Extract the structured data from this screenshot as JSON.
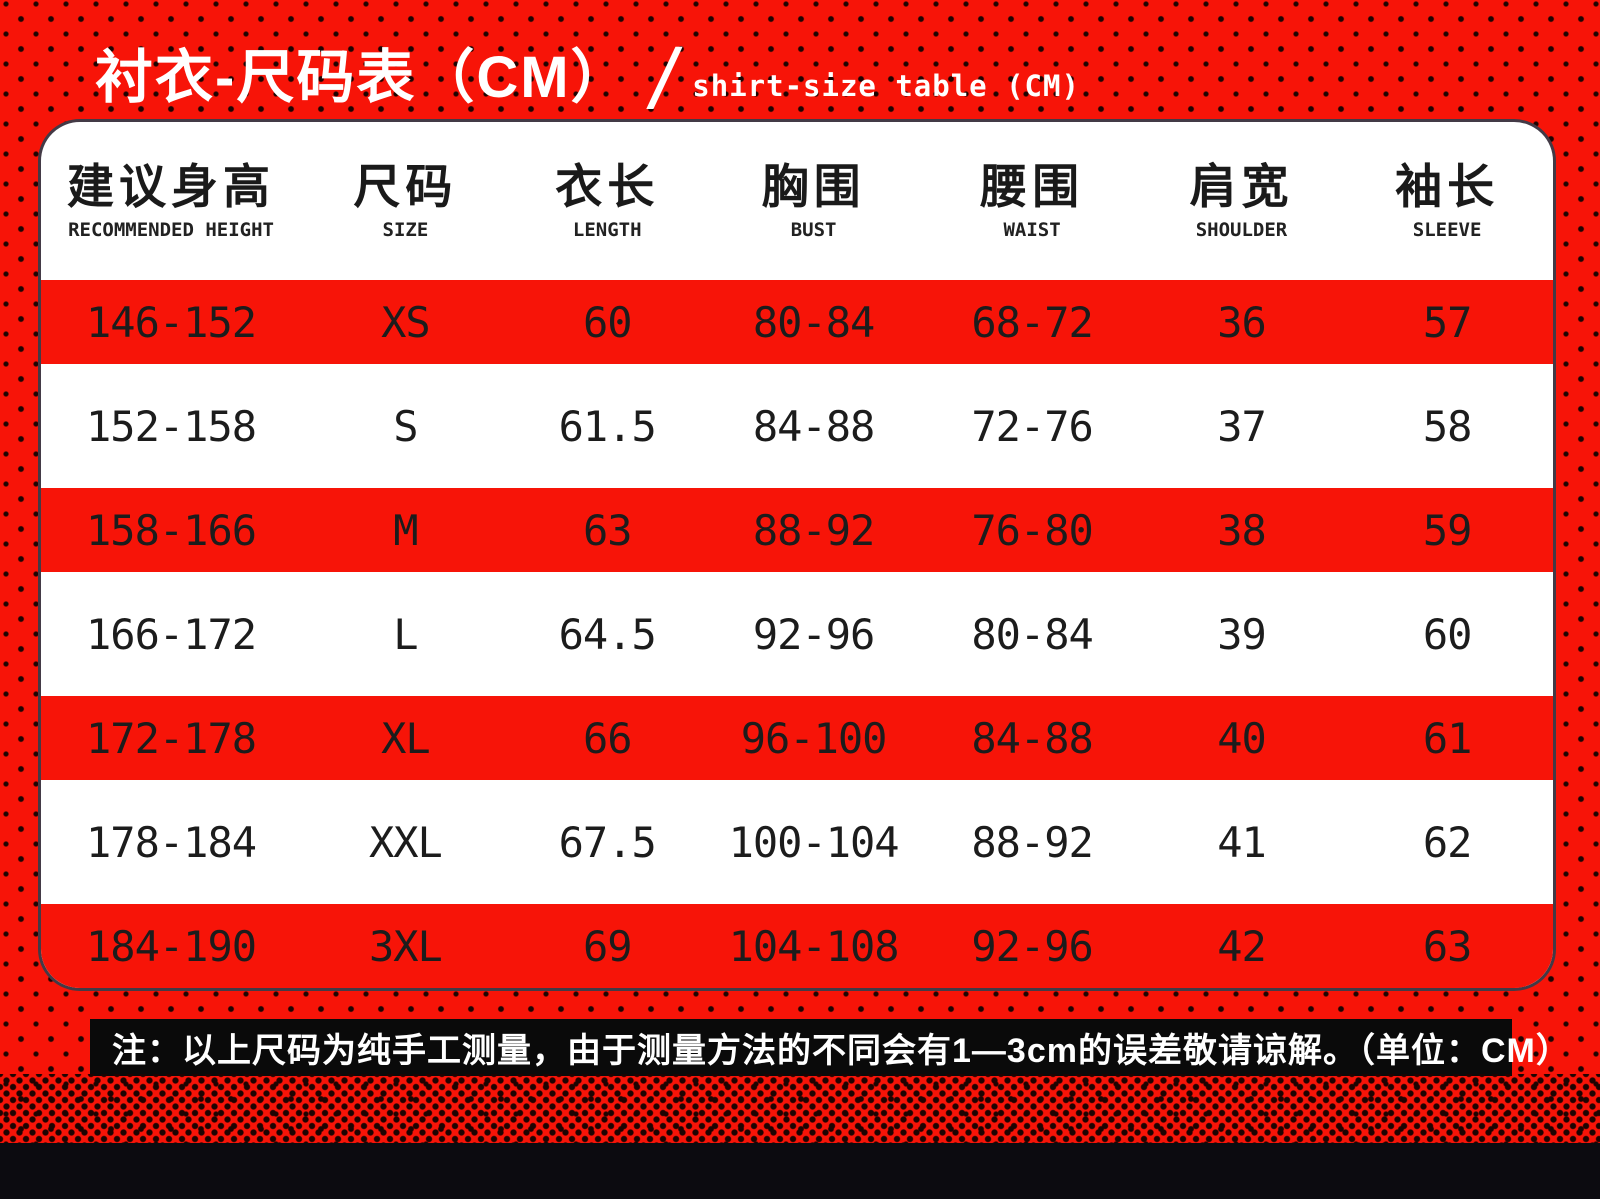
{
  "header": {
    "title_cn": "衬衣-尺码表（CM）",
    "slash": "/",
    "title_en": "shirt-size table (CM)"
  },
  "chart_data": {
    "type": "table",
    "title": "衬衣-尺码表（CM）/ shirt-size table (CM)",
    "units": "CM",
    "columns": [
      {
        "cn": "建议身高",
        "en": "RECOMMENDED HEIGHT"
      },
      {
        "cn": "尺码",
        "en": "SIZE"
      },
      {
        "cn": "衣长",
        "en": "LENGTH"
      },
      {
        "cn": "胸围",
        "en": "BUST"
      },
      {
        "cn": "腰围",
        "en": "WAIST"
      },
      {
        "cn": "肩宽",
        "en": "SHOULDER"
      },
      {
        "cn": "袖长",
        "en": "SLEEVE"
      }
    ],
    "rows": [
      {
        "height": "146-152",
        "size": "XS",
        "length": "60",
        "bust": "80-84",
        "waist": "68-72",
        "shoulder": "36",
        "sleeve": "57"
      },
      {
        "height": "152-158",
        "size": "S",
        "length": "61.5",
        "bust": "84-88",
        "waist": "72-76",
        "shoulder": "37",
        "sleeve": "58"
      },
      {
        "height": "158-166",
        "size": "M",
        "length": "63",
        "bust": "88-92",
        "waist": "76-80",
        "shoulder": "38",
        "sleeve": "59"
      },
      {
        "height": "166-172",
        "size": "L",
        "length": "64.5",
        "bust": "92-96",
        "waist": "80-84",
        "shoulder": "39",
        "sleeve": "60"
      },
      {
        "height": "172-178",
        "size": "XL",
        "length": "66",
        "bust": "96-100",
        "waist": "84-88",
        "shoulder": "40",
        "sleeve": "61"
      },
      {
        "height": "178-184",
        "size": "XXL",
        "length": "67.5",
        "bust": "100-104",
        "waist": "88-92",
        "shoulder": "41",
        "sleeve": "62"
      },
      {
        "height": "184-190",
        "size": "3XL",
        "length": "69",
        "bust": "104-108",
        "waist": "92-96",
        "shoulder": "42",
        "sleeve": "63"
      }
    ],
    "note": "注：以上尺码为纯手工测量，由于测量方法的不同会有1—3cm的误差敬请谅解。（单位：CM）"
  },
  "colors": {
    "background_red": "#f71408",
    "dot_black": "#1d0402",
    "card_border": "#433a46",
    "card_white": "#ffffff",
    "row_red": "#f71408",
    "text_dark": "#1c1c1c",
    "title_text": "#ffffff",
    "note_bg": "#0a0a0a",
    "bottom_bar": "#0c0b10"
  }
}
